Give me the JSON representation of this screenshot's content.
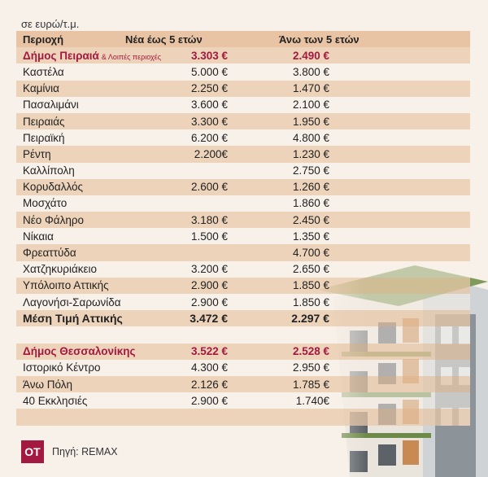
{
  "unit_label": "σε ευρώ/τ.μ.",
  "headers": [
    "Περιοχή",
    "Νέα έως 5 ετών",
    "Άνω των 5 ετών"
  ],
  "rows": [
    {
      "area": "Δήμος Πειραιά",
      "note": "& Λοιπές περιοχές",
      "new": "3.303 €",
      "old": "2.490 €",
      "style": "red"
    },
    {
      "area": "Καστέλα",
      "new": "5.000 €",
      "old": "3.800 €"
    },
    {
      "area": "Καμίνια",
      "new": "2.250 €",
      "old": "1.470 €"
    },
    {
      "area": "Πασαλιμάνι",
      "new": "3.600 €",
      "old": "2.100 €"
    },
    {
      "area": "Πειραιάς",
      "new": "3.300 €",
      "old": "1.950 €"
    },
    {
      "area": "Πειραϊκή",
      "new": "6.200 €",
      "old": "4.800 €"
    },
    {
      "area": "Ρέντη",
      "new": "2.200€",
      "old": "1.230 €"
    },
    {
      "area": "Καλλίπολη",
      "new": "",
      "old": "2.750 €"
    },
    {
      "area": "Κορυδαλλός",
      "new": "2.600 €",
      "old": "1.260 €"
    },
    {
      "area": "Μοσχάτο",
      "new": "",
      "old": "1.860 €"
    },
    {
      "area": "Νέο Φάληρο",
      "new": "3.180 €",
      "old": "2.450 €"
    },
    {
      "area": "Νίκαια",
      "new": "1.500 €",
      "old": "1.350 €"
    },
    {
      "area": "Φρεαττύδα",
      "new": "",
      "old": "4.700 €"
    },
    {
      "area": "Χατζηκυριάκειο",
      "new": "3.200 €",
      "old": "2.650 €"
    },
    {
      "area": "Υπόλοιπο Αττικής",
      "new": "2.900 €",
      "old": "1.850 €"
    },
    {
      "area": "Λαγονήσι-Σαρωνίδα",
      "new": "2.900 €",
      "old": "1.850 €"
    },
    {
      "area": "Μέση Τιμή Αττικής",
      "new": "3.472 €",
      "old": "2.297 €",
      "style": "bold"
    },
    {
      "area": "",
      "new": "",
      "old": ""
    },
    {
      "area": "Δήμος Θεσσαλονίκης",
      "new": "3.522 €",
      "old": "2.528 €",
      "style": "red"
    },
    {
      "area": "Ιστορικό Κέντρο",
      "new": "4.300 €",
      "old": "2.950 €"
    },
    {
      "area": "Άνω Πόλη",
      "new": "2.126 €",
      "old": "1.785 €"
    },
    {
      "area": "40 Εκκλησιές",
      "new": "2.900 €",
      "old": "1.740€"
    },
    {
      "area": "",
      "new": "",
      "old": ""
    }
  ],
  "logo": "ΟΤ",
  "source": "Πηγή: REMAX",
  "colors": {
    "accent": "#a3193f",
    "shade": "#e8c8aa",
    "background": "#f7f1ea"
  }
}
